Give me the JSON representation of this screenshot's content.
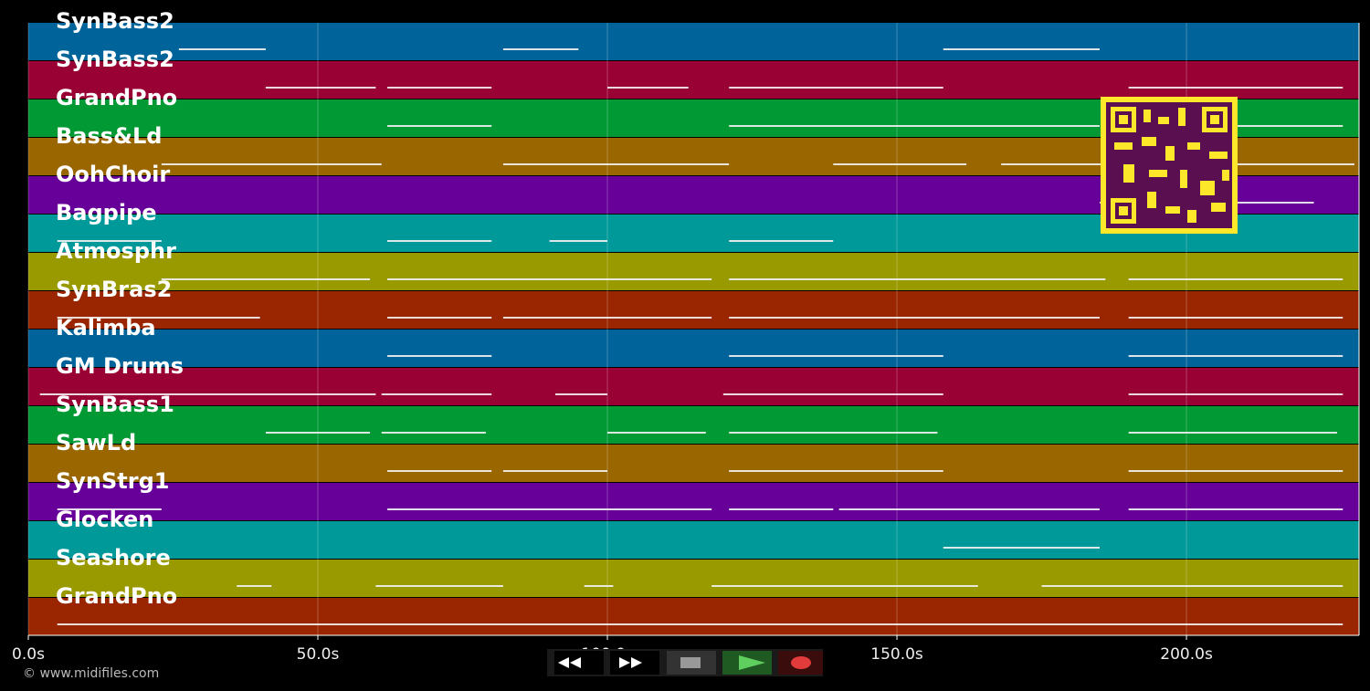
{
  "tracks": [
    {
      "name": "SynBass2",
      "color": "#00649a",
      "notes": [
        [
          26,
          41
        ],
        [
          82,
          95
        ],
        [
          158,
          185
        ]
      ]
    },
    {
      "name": "SynBass2",
      "color": "#990033",
      "notes": [
        [
          41,
          60
        ],
        [
          62,
          80
        ],
        [
          100,
          114
        ],
        [
          121,
          158
        ],
        [
          190,
          227
        ]
      ]
    },
    {
      "name": "GrandPno",
      "color": "#009933",
      "notes": [
        [
          62,
          80
        ],
        [
          121,
          185
        ],
        [
          190,
          227
        ]
      ]
    },
    {
      "name": "Bass&Ld",
      "color": "#996600",
      "notes": [
        [
          23,
          61
        ],
        [
          82,
          121
        ],
        [
          139,
          162
        ],
        [
          168,
          229
        ]
      ]
    },
    {
      "name": "OohChoir",
      "color": "#660099",
      "notes": [
        [
          185,
          222
        ]
      ]
    },
    {
      "name": "Bagpipe",
      "color": "#009999",
      "notes": [
        [
          5,
          23
        ],
        [
          62,
          80
        ],
        [
          90,
          100
        ],
        [
          121,
          139
        ]
      ]
    },
    {
      "name": "Atmosphr",
      "color": "#999900",
      "notes": [
        [
          23,
          59
        ],
        [
          62,
          118
        ],
        [
          121,
          186
        ],
        [
          190,
          227
        ]
      ]
    },
    {
      "name": "SynBras2",
      "color": "#992600",
      "notes": [
        [
          5,
          40
        ],
        [
          62,
          80
        ],
        [
          82,
          118
        ],
        [
          121,
          185
        ],
        [
          190,
          227
        ]
      ]
    },
    {
      "name": "Kalimba",
      "color": "#00649a",
      "notes": [
        [
          62,
          80
        ],
        [
          121,
          158
        ],
        [
          190,
          227
        ]
      ]
    },
    {
      "name": "GM Drums",
      "color": "#990033",
      "notes": [
        [
          2,
          60
        ],
        [
          61,
          80
        ],
        [
          91,
          100
        ],
        [
          120,
          158
        ],
        [
          190,
          227
        ]
      ]
    },
    {
      "name": "SynBass1",
      "color": "#009933",
      "notes": [
        [
          41,
          59
        ],
        [
          61,
          79
        ],
        [
          100,
          117
        ],
        [
          121,
          157
        ],
        [
          190,
          226
        ]
      ]
    },
    {
      "name": "SawLd",
      "color": "#996600",
      "notes": [
        [
          62,
          80
        ],
        [
          82,
          100
        ],
        [
          121,
          158
        ],
        [
          190,
          227
        ]
      ]
    },
    {
      "name": "SynStrg1",
      "color": "#660099",
      "notes": [
        [
          5,
          23
        ],
        [
          62,
          118
        ],
        [
          121,
          139
        ],
        [
          140,
          185
        ],
        [
          190,
          227
        ]
      ]
    },
    {
      "name": "Glocken",
      "color": "#009999",
      "notes": [
        [
          158,
          185
        ]
      ]
    },
    {
      "name": "Seashore",
      "color": "#999900",
      "notes": [
        [
          36,
          42
        ],
        [
          60,
          82
        ],
        [
          96,
          101
        ],
        [
          118,
          164
        ],
        [
          175,
          227
        ]
      ]
    },
    {
      "name": "GrandPno",
      "color": "#992600",
      "notes": [
        [
          5,
          227
        ]
      ]
    }
  ],
  "timeline": {
    "xlim": [
      0,
      229.8
    ],
    "xticks": [
      {
        "value": 0,
        "label": "0.0s"
      },
      {
        "value": 50,
        "label": "50.0s"
      },
      {
        "value": 100,
        "label": "100.0s"
      },
      {
        "value": 150,
        "label": "150.0s"
      },
      {
        "value": 200,
        "label": "200.0s"
      }
    ],
    "grid": true
  },
  "footer": "© www.midifiles.com"
}
